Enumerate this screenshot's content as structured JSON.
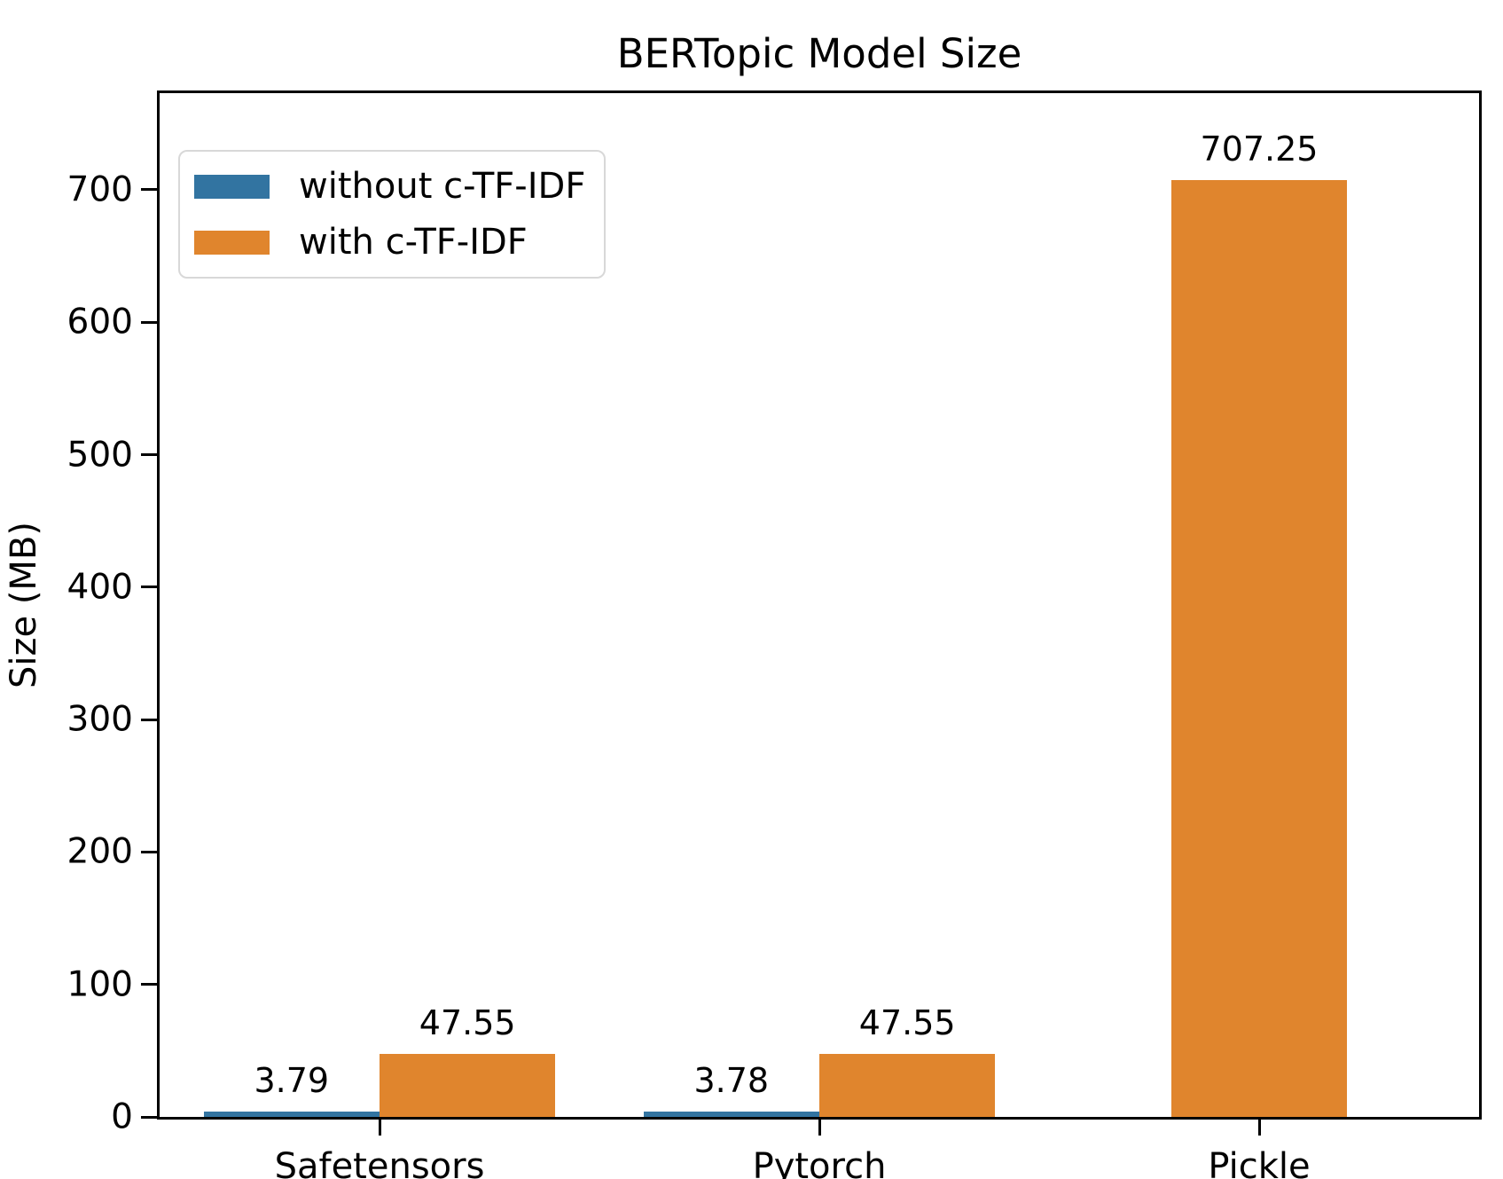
{
  "chart_data": {
    "type": "bar",
    "title": "BERTopic Model Size",
    "xlabel": "",
    "ylabel": "Size (MB)",
    "categories": [
      "Safetensors",
      "Pytorch",
      "Pickle"
    ],
    "series": [
      {
        "name": "without c-TF-IDF",
        "color": "#3274a1",
        "values": [
          3.79,
          3.78,
          null
        ],
        "value_labels": [
          "3.79",
          "3.78",
          null
        ]
      },
      {
        "name": "with c-TF-IDF",
        "color": "#e0852d",
        "values": [
          47.55,
          47.55,
          707.25
        ],
        "value_labels": [
          "47.55",
          "47.55",
          "707.25"
        ]
      }
    ],
    "yticks": [
      0,
      100,
      200,
      300,
      400,
      500,
      600,
      700
    ],
    "ylim": [
      0,
      773
    ],
    "bar_width_fraction": 0.4,
    "grid": false,
    "legend_position": "upper left",
    "axis_color": "#000000",
    "background_color": "#ffffff"
  }
}
